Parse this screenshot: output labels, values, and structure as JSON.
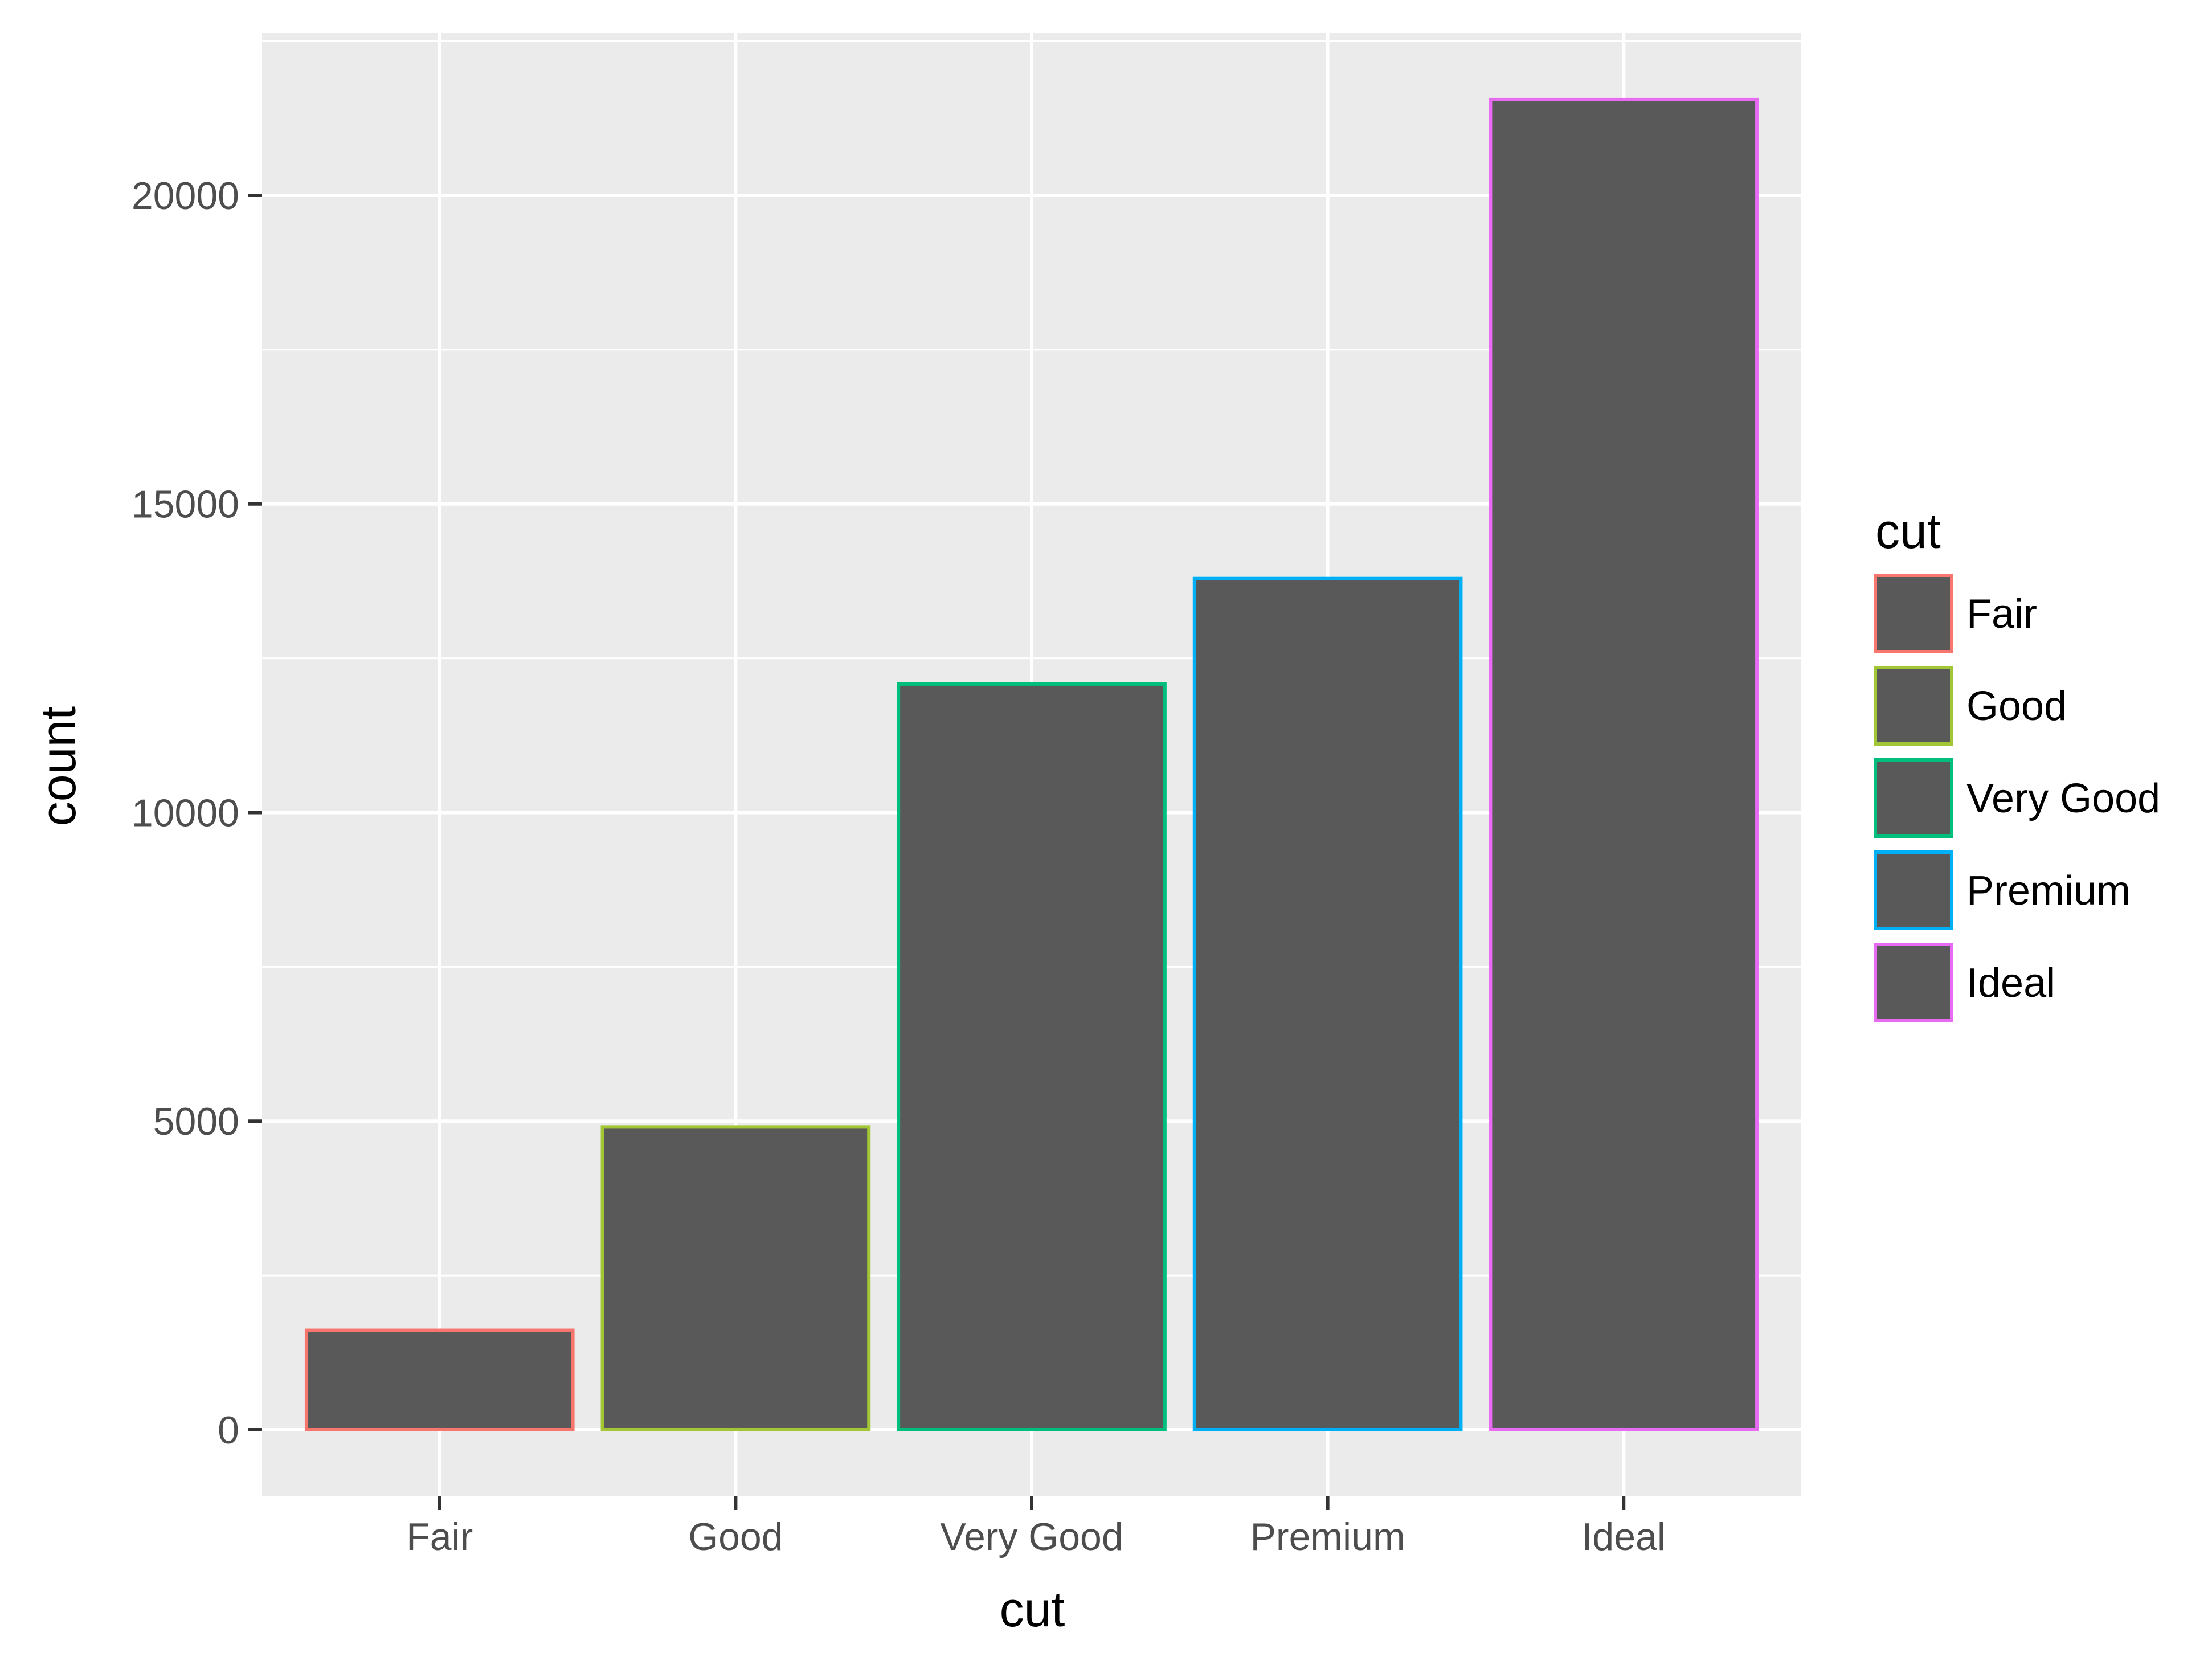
{
  "chart_data": {
    "type": "bar",
    "categories": [
      "Fair",
      "Good",
      "Very Good",
      "Premium",
      "Ideal"
    ],
    "values": [
      1610,
      4906,
      12082,
      13791,
      21551
    ],
    "title": "",
    "xlabel": "cut",
    "ylabel": "count",
    "ylim": [
      -1080,
      22630
    ],
    "y_ticks": [
      0,
      5000,
      10000,
      15000,
      20000
    ],
    "y_tick_labels": [
      "0",
      "5000",
      "10000",
      "15000",
      "20000"
    ],
    "grid": true,
    "legend": {
      "title": "cut",
      "position": "right",
      "entries": [
        "Fair",
        "Good",
        "Very Good",
        "Premium",
        "Ideal"
      ]
    },
    "bar_fill": "#595959",
    "outline_colors": [
      "#F8766D",
      "#A3C734",
      "#00BF7D",
      "#00B0F6",
      "#E76BF3"
    ],
    "panel_background": "#EBEBEB",
    "grid_color": "#FFFFFF"
  }
}
